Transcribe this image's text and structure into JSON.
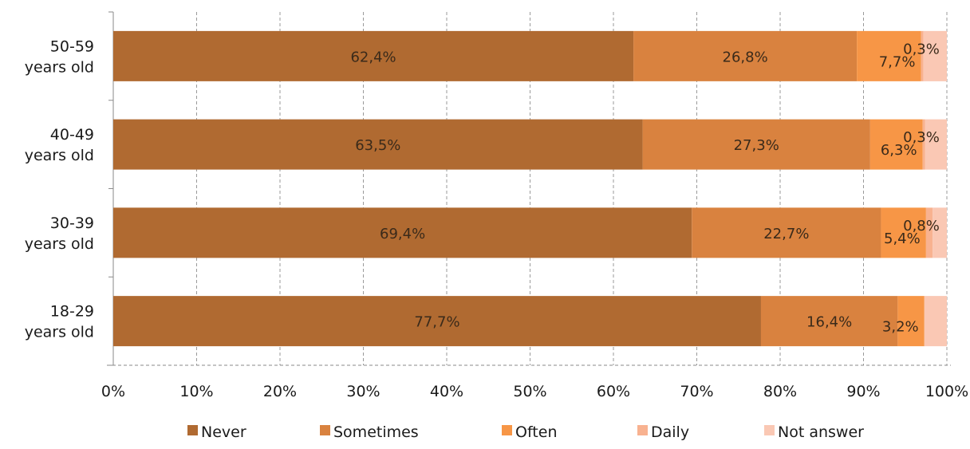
{
  "chart_data": {
    "type": "bar",
    "orientation": "horizontal",
    "stacked": true,
    "title": "",
    "xlabel": "",
    "ylabel": "",
    "xlim": [
      0,
      100
    ],
    "x_ticks": [
      "0%",
      "10%",
      "20%",
      "30%",
      "40%",
      "50%",
      "60%",
      "70%",
      "80%",
      "90%",
      "100%"
    ],
    "grid": "vertical dashed",
    "legend_position": "bottom",
    "categories": [
      [
        "50-59",
        "years old"
      ],
      [
        "40-49",
        "years old"
      ],
      [
        "30-39",
        "years old"
      ],
      [
        "18-29",
        "years old"
      ]
    ],
    "series": [
      {
        "name": "Never",
        "color": "#B06A31",
        "values": [
          62.4,
          63.5,
          69.4,
          77.7
        ],
        "labels": [
          "62,4%",
          "63,5%",
          "69,4%",
          "77,7%"
        ]
      },
      {
        "name": "Sometimes",
        "color": "#D9823F",
        "values": [
          26.8,
          27.3,
          22.7,
          16.4
        ],
        "labels": [
          "26,8%",
          "27,3%",
          "22,7%",
          "16,4%"
        ]
      },
      {
        "name": "Often",
        "color": "#F79646",
        "values": [
          7.7,
          6.3,
          5.4,
          3.2
        ],
        "labels": [
          "7,7%",
          "6,3%",
          "5,4%",
          "3,2%"
        ]
      },
      {
        "name": "Daily",
        "color": "#F8B290",
        "values": [
          0.3,
          0.3,
          0.8,
          0.0
        ],
        "labels": [
          "0,3%",
          "0,3%",
          "0,8%",
          ""
        ]
      },
      {
        "name": "Not answer",
        "color": "#FAC8B4",
        "values": [
          2.8,
          2.6,
          1.7,
          2.7
        ],
        "labels": [
          "",
          "",
          "",
          ""
        ]
      }
    ]
  }
}
